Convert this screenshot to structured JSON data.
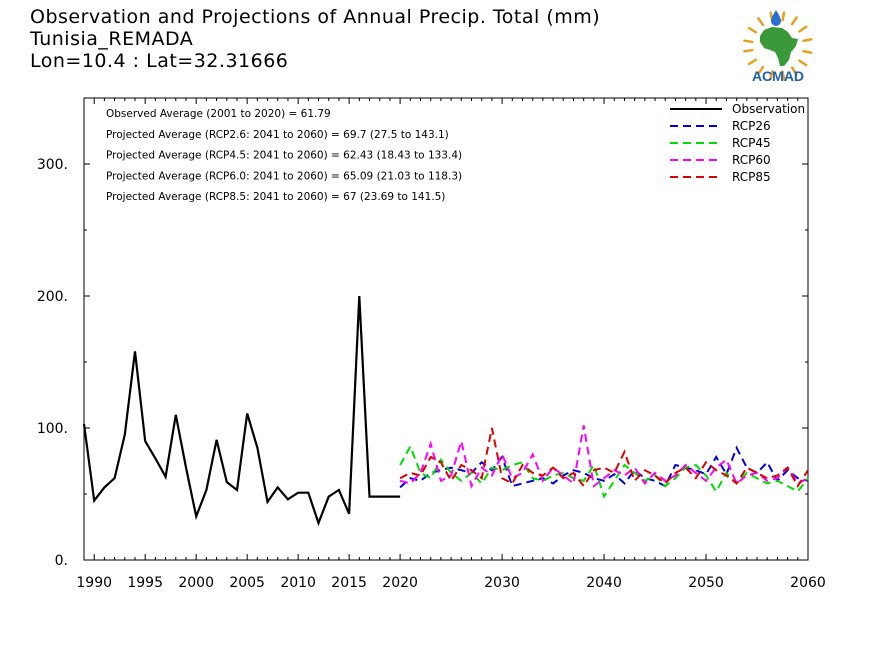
{
  "header": {
    "line1": "Observation and Projections of Annual Precip. Total (mm)",
    "line2": "Tunisia_REMADA",
    "line3": "Lon=10.4 : Lat=32.31666"
  },
  "logo": {
    "text": "ACMAD",
    "colors": {
      "africa": "#3a9a3a",
      "rays": "#e8a020",
      "text": "#1f5fb0",
      "drop": "#2a6fd0"
    }
  },
  "chart_data": {
    "type": "line",
    "xlim": [
      1989,
      2060
    ],
    "ylim": [
      0,
      350
    ],
    "yticks": [
      0,
      100,
      200,
      300
    ],
    "ytick_labels": [
      "0.",
      "100.",
      "200.",
      "300."
    ],
    "xticks": [
      1990,
      1995,
      2000,
      2005,
      2010,
      2015,
      2020,
      2030,
      2040,
      2050,
      2060
    ],
    "xtick_labels": [
      "1990",
      "1995",
      "2000",
      "2005",
      "2010",
      "2015",
      "2020",
      "2030",
      "2040",
      "2050",
      "2060"
    ],
    "annotations": [
      "Observed Average (2001 to 2020) = 61.79",
      "Projected Average (RCP2.6: 2041 to 2060) = 69.7 (27.5 to 143.1)",
      "Projected Average (RCP4.5: 2041 to 2060) = 62.43 (18.43 to 133.4)",
      "Projected Average (RCP6.0: 2041 to 2060) = 65.09 (21.03 to 118.3)",
      "Projected Average (RCP8.5: 2041 to 2060) = 67 (23.69 to 141.5)"
    ],
    "legend_position": "top-right",
    "series": [
      {
        "name": "Observation",
        "color": "#000000",
        "dash": "solid",
        "x": [
          1989,
          1990,
          1991,
          1992,
          1993,
          1994,
          1995,
          1996,
          1997,
          1998,
          1999,
          2000,
          2001,
          2002,
          2003,
          2004,
          2005,
          2006,
          2007,
          2008,
          2009,
          2010,
          2011,
          2012,
          2013,
          2014,
          2015,
          2016,
          2017,
          2018,
          2019,
          2020
        ],
        "values": [
          103,
          45,
          55,
          62,
          95,
          158,
          90,
          77,
          63,
          110,
          70,
          33,
          53,
          91,
          59,
          53,
          111,
          85,
          44,
          55,
          46,
          51,
          51,
          28,
          48,
          53,
          35,
          200,
          48,
          48,
          48,
          48
        ]
      },
      {
        "name": "RCP26",
        "color": "#0000dd",
        "dash": "dashed",
        "x": [
          2020,
          2021,
          2022,
          2023,
          2024,
          2025,
          2026,
          2027,
          2028,
          2029,
          2030,
          2031,
          2032,
          2033,
          2034,
          2035,
          2036,
          2037,
          2038,
          2039,
          2040,
          2041,
          2042,
          2043,
          2044,
          2045,
          2046,
          2047,
          2048,
          2049,
          2050,
          2051,
          2052,
          2053,
          2054,
          2055,
          2056,
          2057,
          2058,
          2059,
          2060
        ],
        "values": [
          55,
          62,
          60,
          66,
          68,
          70,
          68,
          66,
          74,
          68,
          78,
          56,
          58,
          60,
          62,
          58,
          64,
          68,
          66,
          62,
          60,
          65,
          58,
          68,
          62,
          60,
          56,
          72,
          70,
          68,
          65,
          78,
          65,
          85,
          70,
          66,
          74,
          60,
          68,
          62,
          60
        ]
      },
      {
        "name": "RCP45",
        "color": "#00dd00",
        "dash": "dashed",
        "x": [
          2020,
          2021,
          2022,
          2023,
          2024,
          2025,
          2026,
          2027,
          2028,
          2029,
          2030,
          2031,
          2032,
          2033,
          2034,
          2035,
          2036,
          2037,
          2038,
          2039,
          2040,
          2041,
          2042,
          2043,
          2044,
          2045,
          2046,
          2047,
          2048,
          2049,
          2050,
          2051,
          2052,
          2053,
          2054,
          2055,
          2056,
          2057,
          2058,
          2059,
          2060
        ],
        "values": [
          72,
          86,
          66,
          62,
          76,
          66,
          60,
          66,
          58,
          70,
          68,
          72,
          74,
          62,
          60,
          64,
          66,
          62,
          60,
          72,
          48,
          60,
          72,
          66,
          60,
          64,
          56,
          62,
          70,
          72,
          64,
          52,
          66,
          58,
          66,
          62,
          58,
          60,
          56,
          52,
          62
        ]
      },
      {
        "name": "RCP60",
        "color": "#ff00ff",
        "dash": "dashed",
        "x": [
          2020,
          2021,
          2022,
          2023,
          2024,
          2025,
          2026,
          2027,
          2028,
          2029,
          2030,
          2031,
          2032,
          2033,
          2034,
          2035,
          2036,
          2037,
          2038,
          2039,
          2040,
          2041,
          2042,
          2043,
          2044,
          2045,
          2046,
          2047,
          2048,
          2049,
          2050,
          2051,
          2052,
          2053,
          2054,
          2055,
          2056,
          2057,
          2058,
          2059,
          2060
        ],
        "values": [
          60,
          58,
          66,
          88,
          60,
          64,
          90,
          56,
          70,
          64,
          80,
          62,
          66,
          80,
          60,
          70,
          64,
          58,
          102,
          56,
          62,
          68,
          64,
          70,
          58,
          66,
          60,
          64,
          72,
          66,
          60,
          70,
          76,
          58,
          64,
          66,
          60,
          62,
          70,
          58,
          62
        ]
      },
      {
        "name": "RCP85",
        "color": "#dd0000",
        "dash": "dashed",
        "x": [
          2020,
          2021,
          2022,
          2023,
          2024,
          2025,
          2026,
          2027,
          2028,
          2029,
          2030,
          2031,
          2032,
          2033,
          2034,
          2035,
          2036,
          2037,
          2038,
          2039,
          2040,
          2041,
          2042,
          2043,
          2044,
          2045,
          2046,
          2047,
          2048,
          2049,
          2050,
          2051,
          2052,
          2053,
          2054,
          2055,
          2056,
          2057,
          2058,
          2059,
          2060
        ],
        "values": [
          62,
          66,
          64,
          78,
          74,
          60,
          72,
          68,
          62,
          100,
          62,
          58,
          72,
          66,
          64,
          70,
          62,
          66,
          56,
          68,
          70,
          66,
          82,
          60,
          68,
          64,
          58,
          66,
          70,
          62,
          74,
          68,
          64,
          58,
          70,
          66,
          62,
          64,
          70,
          56,
          68
        ]
      }
    ]
  }
}
